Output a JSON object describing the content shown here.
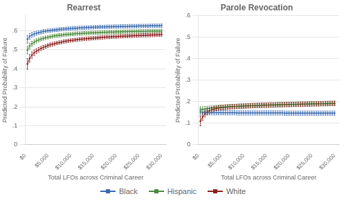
{
  "chart_data": [
    {
      "type": "line",
      "title": "Rearrest",
      "xlabel": "Total LFOs across Criminal Career",
      "ylabel": "Predicted Probability of Failure",
      "x": [
        500,
        1000,
        1500,
        2000,
        2500,
        3000,
        3500,
        4000,
        4500,
        5000,
        5500,
        6000,
        6500,
        7000,
        7500,
        8000,
        8500,
        9000,
        9500,
        10000,
        10500,
        11000,
        11500,
        12000,
        12500,
        13000,
        13500,
        14000,
        14500,
        15000,
        15500,
        16000,
        16500,
        17000,
        17500,
        18000,
        18500,
        19000,
        19500,
        20000,
        20500,
        21000,
        21500,
        22000,
        22500,
        23000,
        23500,
        24000,
        24500,
        25000,
        25500,
        26000,
        26500,
        27000,
        27500,
        28000,
        28500,
        29000,
        29500,
        30000
      ],
      "xlim": [
        0,
        31000
      ],
      "xticks": [
        {
          "value": 0,
          "label": "$0"
        },
        {
          "value": 5000,
          "label": "$5,000"
        },
        {
          "value": 10000,
          "label": "$10,000"
        },
        {
          "value": 15000,
          "label": "$15,000"
        },
        {
          "value": 20000,
          "label": "$20,000"
        },
        {
          "value": 25000,
          "label": "$25,000"
        },
        {
          "value": 30000,
          "label": "$30,000"
        }
      ],
      "ylim": [
        0,
        0.68
      ],
      "yticks": [
        0,
        {
          "value": 0.1,
          "label": ".1"
        },
        {
          "value": 0.2,
          "label": ".2"
        },
        {
          "value": 0.3,
          "label": ".3"
        },
        {
          "value": 0.4,
          "label": ".4"
        },
        {
          "value": 0.5,
          "label": ".5"
        },
        {
          "value": 0.6,
          "label": ".6"
        }
      ],
      "grid": "y",
      "legend": "bottom",
      "marker": "square",
      "line_style": "solid",
      "series": [
        {
          "name": "Black",
          "color": "#3a6ab0",
          "values": [
            0.555,
            0.57,
            0.578,
            0.583,
            0.587,
            0.59,
            0.593,
            0.596,
            0.598,
            0.6,
            0.601,
            0.603,
            0.604,
            0.605,
            0.607,
            0.608,
            0.609,
            0.61,
            0.611,
            0.612,
            0.613,
            0.613,
            0.614,
            0.615,
            0.615,
            0.616,
            0.617,
            0.617,
            0.618,
            0.618,
            0.619,
            0.619,
            0.62,
            0.62,
            0.62,
            0.621,
            0.621,
            0.621,
            0.622,
            0.622,
            0.622,
            0.623,
            0.623,
            0.623,
            0.623,
            0.624,
            0.624,
            0.624,
            0.624,
            0.625,
            0.625,
            0.625,
            0.625,
            0.625,
            0.626,
            0.626,
            0.626,
            0.626,
            0.626,
            0.627
          ],
          "errors": [
            0.02,
            0.016,
            0.013,
            0.012,
            0.011,
            0.01,
            0.01,
            0.01,
            0.009,
            0.009,
            0.009,
            0.009,
            0.009,
            0.009,
            0.009,
            0.009,
            0.009,
            0.009,
            0.009,
            0.009,
            0.009,
            0.009,
            0.009,
            0.009,
            0.009,
            0.009,
            0.009,
            0.009,
            0.009,
            0.009,
            0.009,
            0.009,
            0.009,
            0.009,
            0.009,
            0.009,
            0.009,
            0.009,
            0.009,
            0.009,
            0.009,
            0.009,
            0.009,
            0.009,
            0.009,
            0.009,
            0.009,
            0.009,
            0.009,
            0.009,
            0.009,
            0.009,
            0.009,
            0.009,
            0.009,
            0.009,
            0.009,
            0.009,
            0.009,
            0.009
          ]
        },
        {
          "name": "Hispanic",
          "color": "#4a8a3c",
          "values": [
            0.498,
            0.519,
            0.532,
            0.54,
            0.547,
            0.552,
            0.556,
            0.56,
            0.563,
            0.566,
            0.568,
            0.571,
            0.573,
            0.574,
            0.576,
            0.577,
            0.579,
            0.58,
            0.581,
            0.582,
            0.583,
            0.584,
            0.585,
            0.585,
            0.586,
            0.587,
            0.587,
            0.588,
            0.589,
            0.589,
            0.59,
            0.59,
            0.591,
            0.591,
            0.592,
            0.592,
            0.593,
            0.593,
            0.593,
            0.594,
            0.594,
            0.594,
            0.595,
            0.595,
            0.595,
            0.596,
            0.596,
            0.596,
            0.596,
            0.597,
            0.597,
            0.597,
            0.597,
            0.598,
            0.598,
            0.598,
            0.598,
            0.598,
            0.598,
            0.599
          ],
          "errors": [
            0.02,
            0.016,
            0.013,
            0.012,
            0.011,
            0.01,
            0.01,
            0.01,
            0.009,
            0.009,
            0.009,
            0.009,
            0.009,
            0.009,
            0.009,
            0.009,
            0.009,
            0.009,
            0.009,
            0.009,
            0.009,
            0.009,
            0.009,
            0.009,
            0.009,
            0.009,
            0.009,
            0.009,
            0.009,
            0.009,
            0.009,
            0.009,
            0.009,
            0.009,
            0.009,
            0.009,
            0.009,
            0.009,
            0.009,
            0.009,
            0.009,
            0.009,
            0.009,
            0.009,
            0.009,
            0.009,
            0.009,
            0.009,
            0.009,
            0.009,
            0.009,
            0.009,
            0.009,
            0.009,
            0.009,
            0.009,
            0.009,
            0.009,
            0.009,
            0.009
          ]
        },
        {
          "name": "White",
          "color": "#8b2020",
          "values": [
            0.425,
            0.455,
            0.472,
            0.484,
            0.493,
            0.5,
            0.507,
            0.512,
            0.517,
            0.522,
            0.526,
            0.529,
            0.532,
            0.535,
            0.538,
            0.54,
            0.543,
            0.545,
            0.547,
            0.549,
            0.55,
            0.552,
            0.553,
            0.555,
            0.556,
            0.557,
            0.558,
            0.559,
            0.56,
            0.561,
            0.562,
            0.563,
            0.564,
            0.565,
            0.566,
            0.567,
            0.567,
            0.568,
            0.569,
            0.569,
            0.57,
            0.571,
            0.571,
            0.572,
            0.572,
            0.573,
            0.573,
            0.574,
            0.574,
            0.575,
            0.575,
            0.576,
            0.576,
            0.577,
            0.577,
            0.578,
            0.578,
            0.579,
            0.579,
            0.58
          ],
          "errors": [
            0.028,
            0.02,
            0.017,
            0.015,
            0.013,
            0.012,
            0.011,
            0.011,
            0.01,
            0.01,
            0.01,
            0.01,
            0.01,
            0.009,
            0.009,
            0.009,
            0.009,
            0.009,
            0.009,
            0.009,
            0.009,
            0.009,
            0.009,
            0.009,
            0.009,
            0.009,
            0.009,
            0.009,
            0.009,
            0.009,
            0.009,
            0.009,
            0.009,
            0.009,
            0.009,
            0.009,
            0.009,
            0.009,
            0.009,
            0.009,
            0.009,
            0.009,
            0.009,
            0.009,
            0.009,
            0.009,
            0.009,
            0.009,
            0.009,
            0.009,
            0.009,
            0.009,
            0.009,
            0.009,
            0.009,
            0.009,
            0.009,
            0.009,
            0.009,
            0.009
          ]
        }
      ]
    },
    {
      "type": "line",
      "title": "Parole Revocation",
      "xlabel": "Total LFOs across Criminal Career",
      "ylabel": "Predicted Probability of Failure",
      "x": [
        500,
        1000,
        1500,
        2000,
        2500,
        3000,
        3500,
        4000,
        4500,
        5000,
        5500,
        6000,
        6500,
        7000,
        7500,
        8000,
        8500,
        9000,
        9500,
        10000,
        10500,
        11000,
        11500,
        12000,
        12500,
        13000,
        13500,
        14000,
        14500,
        15000,
        15500,
        16000,
        16500,
        17000,
        17500,
        18000,
        18500,
        19000,
        19500,
        20000,
        20500,
        21000,
        21500,
        22000,
        22500,
        23000,
        23500,
        24000,
        24500,
        25000,
        25500,
        26000,
        26500,
        27000,
        27500,
        28000,
        28500,
        29000,
        29500,
        30000
      ],
      "xlim": [
        0,
        31000
      ],
      "xticks": [
        {
          "value": 0,
          "label": "$0"
        },
        {
          "value": 5000,
          "label": "$5,000"
        },
        {
          "value": 10000,
          "label": "$10,000"
        },
        {
          "value": 15000,
          "label": "$15,000"
        },
        {
          "value": 20000,
          "label": "$20,000"
        },
        {
          "value": 25000,
          "label": "$25,000"
        },
        {
          "value": 30000,
          "label": "$30,000"
        }
      ],
      "ylim": [
        0,
        0.6
      ],
      "yticks": [
        0,
        {
          "value": 0.1,
          "label": ".1"
        },
        {
          "value": 0.2,
          "label": ".2"
        },
        {
          "value": 0.3,
          "label": ".3"
        },
        {
          "value": 0.4,
          "label": ".4"
        },
        {
          "value": 0.5,
          "label": ".5"
        },
        {
          "value": 0.6,
          "label": ".6"
        }
      ],
      "grid": "y",
      "legend": "bottom",
      "marker": "square",
      "line_style": "solid",
      "series": [
        {
          "name": "Black",
          "color": "#3a6ab0",
          "values": [
            0.153,
            0.151,
            0.15,
            0.149,
            0.149,
            0.149,
            0.149,
            0.149,
            0.149,
            0.149,
            0.149,
            0.149,
            0.149,
            0.149,
            0.149,
            0.149,
            0.148,
            0.148,
            0.148,
            0.148,
            0.148,
            0.148,
            0.148,
            0.148,
            0.148,
            0.148,
            0.148,
            0.148,
            0.148,
            0.148,
            0.148,
            0.148,
            0.148,
            0.148,
            0.148,
            0.148,
            0.148,
            0.147,
            0.147,
            0.147,
            0.147,
            0.147,
            0.147,
            0.147,
            0.147,
            0.147,
            0.147,
            0.147,
            0.147,
            0.147,
            0.147,
            0.147,
            0.147,
            0.147,
            0.147,
            0.147,
            0.147,
            0.147,
            0.147,
            0.147
          ],
          "errors": [
            0.015,
            0.012,
            0.011,
            0.01,
            0.01,
            0.01,
            0.01,
            0.01,
            0.01,
            0.01,
            0.01,
            0.01,
            0.01,
            0.01,
            0.01,
            0.01,
            0.01,
            0.01,
            0.01,
            0.01,
            0.01,
            0.01,
            0.01,
            0.01,
            0.01,
            0.01,
            0.01,
            0.01,
            0.01,
            0.01,
            0.01,
            0.01,
            0.01,
            0.01,
            0.01,
            0.01,
            0.01,
            0.01,
            0.01,
            0.01,
            0.01,
            0.01,
            0.01,
            0.01,
            0.01,
            0.01,
            0.01,
            0.01,
            0.01,
            0.01,
            0.01,
            0.01,
            0.01,
            0.01,
            0.01,
            0.01,
            0.01,
            0.01,
            0.01,
            0.01
          ]
        },
        {
          "name": "Hispanic",
          "color": "#4a8a3c",
          "values": [
            0.162,
            0.165,
            0.167,
            0.169,
            0.17,
            0.171,
            0.172,
            0.173,
            0.174,
            0.175,
            0.175,
            0.176,
            0.177,
            0.177,
            0.178,
            0.178,
            0.179,
            0.179,
            0.18,
            0.18,
            0.181,
            0.181,
            0.182,
            0.182,
            0.182,
            0.183,
            0.183,
            0.184,
            0.184,
            0.184,
            0.185,
            0.185,
            0.185,
            0.186,
            0.186,
            0.186,
            0.187,
            0.187,
            0.187,
            0.187,
            0.188,
            0.188,
            0.188,
            0.189,
            0.189,
            0.189,
            0.189,
            0.19,
            0.19,
            0.19,
            0.19,
            0.191,
            0.191,
            0.191,
            0.191,
            0.192,
            0.192,
            0.192,
            0.192,
            0.193
          ],
          "errors": [
            0.015,
            0.012,
            0.011,
            0.01,
            0.01,
            0.01,
            0.01,
            0.01,
            0.01,
            0.01,
            0.01,
            0.01,
            0.01,
            0.01,
            0.01,
            0.01,
            0.01,
            0.01,
            0.01,
            0.01,
            0.01,
            0.01,
            0.01,
            0.01,
            0.01,
            0.01,
            0.01,
            0.01,
            0.01,
            0.01,
            0.01,
            0.01,
            0.01,
            0.01,
            0.01,
            0.01,
            0.01,
            0.01,
            0.01,
            0.01,
            0.01,
            0.01,
            0.01,
            0.01,
            0.01,
            0.01,
            0.01,
            0.01,
            0.01,
            0.01,
            0.01,
            0.01,
            0.01,
            0.01,
            0.01,
            0.01,
            0.01,
            0.01,
            0.01,
            0.01
          ]
        },
        {
          "name": "White",
          "color": "#8b2020",
          "values": [
            0.11,
            0.13,
            0.143,
            0.152,
            0.158,
            0.163,
            0.166,
            0.169,
            0.171,
            0.172,
            0.173,
            0.174,
            0.175,
            0.176,
            0.177,
            0.177,
            0.178,
            0.179,
            0.179,
            0.18,
            0.18,
            0.181,
            0.181,
            0.182,
            0.182,
            0.183,
            0.183,
            0.183,
            0.184,
            0.184,
            0.184,
            0.185,
            0.185,
            0.185,
            0.186,
            0.186,
            0.186,
            0.187,
            0.187,
            0.187,
            0.187,
            0.188,
            0.188,
            0.188,
            0.188,
            0.189,
            0.189,
            0.189,
            0.189,
            0.19,
            0.19,
            0.19,
            0.19,
            0.191,
            0.191,
            0.191,
            0.191,
            0.192,
            0.192,
            0.192
          ],
          "errors": [
            0.022,
            0.017,
            0.014,
            0.013,
            0.012,
            0.011,
            0.011,
            0.01,
            0.01,
            0.01,
            0.01,
            0.01,
            0.01,
            0.01,
            0.01,
            0.01,
            0.01,
            0.01,
            0.01,
            0.01,
            0.01,
            0.01,
            0.01,
            0.01,
            0.01,
            0.01,
            0.01,
            0.01,
            0.01,
            0.01,
            0.01,
            0.01,
            0.01,
            0.01,
            0.01,
            0.01,
            0.01,
            0.01,
            0.01,
            0.01,
            0.01,
            0.01,
            0.01,
            0.01,
            0.01,
            0.01,
            0.01,
            0.01,
            0.01,
            0.01,
            0.01,
            0.01,
            0.01,
            0.01,
            0.01,
            0.01,
            0.01,
            0.01,
            0.01,
            0.01
          ]
        }
      ]
    }
  ]
}
